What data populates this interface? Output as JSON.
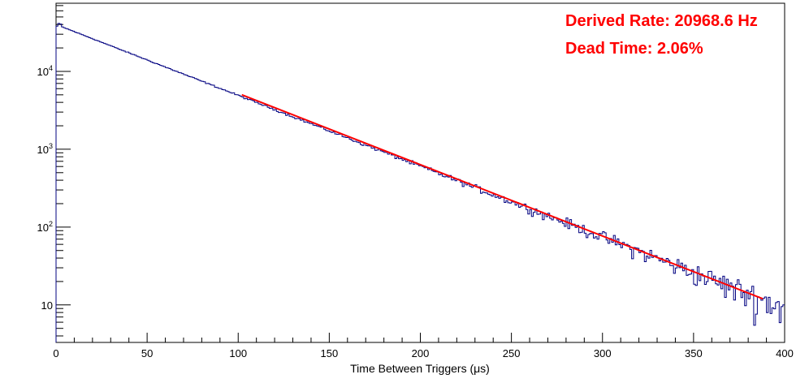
{
  "chart_data": {
    "type": "line",
    "xlabel": "Time Between Triggers (μs)",
    "ylabel": "",
    "xlim": [
      0,
      400
    ],
    "ylim": [
      3.3,
      75000
    ],
    "y_scale": "log",
    "grid": false,
    "x_ticks": [
      {
        "value": 0,
        "label": "0"
      },
      {
        "value": 50,
        "label": "50"
      },
      {
        "value": 100,
        "label": "100"
      },
      {
        "value": 150,
        "label": "150"
      },
      {
        "value": 200,
        "label": "200"
      },
      {
        "value": 250,
        "label": "250"
      },
      {
        "value": 300,
        "label": "300"
      },
      {
        "value": 350,
        "label": "350"
      },
      {
        "value": 400,
        "label": "400"
      }
    ],
    "y_ticks": [
      {
        "value": 10,
        "base": "10",
        "exp": ""
      },
      {
        "value": 100,
        "base": "10",
        "exp": "2"
      },
      {
        "value": 1000,
        "base": "10",
        "exp": "3"
      },
      {
        "value": 10000,
        "base": "10",
        "exp": "4"
      }
    ],
    "annotations": [
      {
        "text": "Derived Rate: 20968.6 Hz",
        "color": "#ff0000"
      },
      {
        "text": "Dead Time: 2.06%",
        "color": "#ff0000"
      }
    ],
    "series": [
      {
        "kind": "histogram",
        "color": "#000080",
        "bin_width": 1,
        "x_start": 0,
        "x_end": 400,
        "values_note_first_bins": [
          38000,
          41000,
          40500
        ],
        "model_amplitude": 40000,
        "model_decay_per_us": 0.020968
      },
      {
        "kind": "fit",
        "color": "#ff0000",
        "x_range": [
          102,
          388
        ],
        "y_range": [
          5000,
          12
        ]
      }
    ]
  }
}
